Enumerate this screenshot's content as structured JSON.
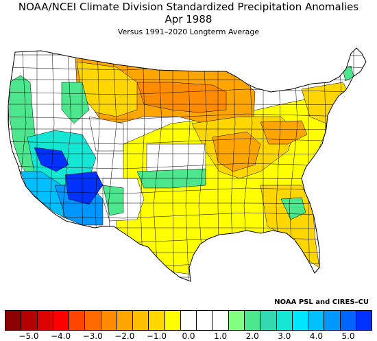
{
  "title_line1": "NOAA/NCEI Climate Division Standardized Precipitation Anomalies",
  "title_line2": "Apr 1988",
  "subtitle": "Versus 1991–2020 Longterm Average",
  "credit": "NOAA PSL and CIRES–CU",
  "colorbar": {
    "colors": [
      "#8b0000",
      "#b40000",
      "#dc0000",
      "#ff0000",
      "#ff4500",
      "#ff6a00",
      "#ff8c00",
      "#ffa500",
      "#ffbf00",
      "#ffd700",
      "#ffff00",
      "#ffffff",
      "#ffffff",
      "#ffffff",
      "#80ff80",
      "#4ce68c",
      "#33d9b0",
      "#14e6d4",
      "#00e6ff",
      "#00bfff",
      "#0096ff",
      "#0064ff",
      "#0032ff"
    ],
    "ticks": [
      "−5.0",
      "−4.0",
      "−3.0",
      "−2.0",
      "−1.0",
      "0.0",
      "1.0",
      "2.0",
      "3.0",
      "4.0",
      "5.0"
    ]
  },
  "map_colors": {
    "us_fill": "#ffffff",
    "dry_light": "#ffff00",
    "dry_moderate": "#ffd700",
    "dry_strong": "#ffa500",
    "dry_severe": "#ff8c00",
    "wet_light": "#80ff80",
    "wet_moderate": "#4ce68c",
    "wet_strong": "#14e6d4",
    "wet_heavy": "#00bfff",
    "wet_very_heavy": "#0096ff",
    "wet_extreme": "#0032ff"
  }
}
